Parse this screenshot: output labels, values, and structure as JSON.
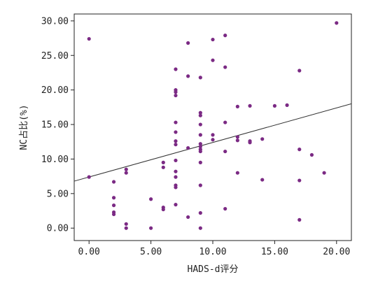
{
  "chart_data": {
    "type": "scatter",
    "xlabel": "HADS-d评分",
    "ylabel": "NC占比(%)",
    "xlim": [
      -1.2,
      21.2
    ],
    "ylim": [
      -1.8,
      31.0
    ],
    "x_ticks": [
      "0.00",
      "5.00",
      "10.00",
      "15.00",
      "20.00"
    ],
    "x_tick_values": [
      0,
      5,
      10,
      15,
      20
    ],
    "y_ticks": [
      "0.00",
      "5.00",
      "10.00",
      "15.00",
      "20.00",
      "25.00",
      "30.00"
    ],
    "y_tick_values": [
      0,
      5,
      10,
      15,
      20,
      25,
      30
    ],
    "grid": false,
    "point_color": "#7b2a84",
    "line_color": "#333333",
    "fit_line": {
      "x": [
        -1.2,
        21.2
      ],
      "y": [
        6.8,
        18.0
      ]
    },
    "points": [
      [
        0,
        27.4
      ],
      [
        0,
        7.4
      ],
      [
        2,
        6.7
      ],
      [
        2,
        4.4
      ],
      [
        2,
        3.3
      ],
      [
        2,
        2.3
      ],
      [
        2,
        2.0
      ],
      [
        3,
        8.5
      ],
      [
        3,
        8.0
      ],
      [
        3,
        0.6
      ],
      [
        3,
        0.0
      ],
      [
        5,
        4.2
      ],
      [
        5,
        0.0
      ],
      [
        6,
        9.5
      ],
      [
        6,
        8.8
      ],
      [
        6,
        3.0
      ],
      [
        6,
        2.7
      ],
      [
        7,
        23.0
      ],
      [
        7,
        20.0
      ],
      [
        7,
        19.7
      ],
      [
        7,
        19.2
      ],
      [
        7,
        15.3
      ],
      [
        7,
        13.9
      ],
      [
        7,
        12.6
      ],
      [
        7,
        12.1
      ],
      [
        7,
        9.8
      ],
      [
        7,
        8.2
      ],
      [
        7,
        7.4
      ],
      [
        7,
        6.2
      ],
      [
        7,
        5.9
      ],
      [
        7,
        3.4
      ],
      [
        8,
        26.8
      ],
      [
        8,
        22.0
      ],
      [
        8,
        11.6
      ],
      [
        8,
        1.6
      ],
      [
        9,
        21.8
      ],
      [
        9,
        16.7
      ],
      [
        9,
        16.3
      ],
      [
        9,
        15.0
      ],
      [
        9,
        13.5
      ],
      [
        9,
        12.2
      ],
      [
        9,
        11.8
      ],
      [
        9,
        11.4
      ],
      [
        9,
        11.1
      ],
      [
        9,
        9.5
      ],
      [
        9,
        6.2
      ],
      [
        9,
        2.2
      ],
      [
        9,
        0.0
      ],
      [
        10,
        27.3
      ],
      [
        10,
        24.3
      ],
      [
        10,
        13.5
      ],
      [
        10,
        12.8
      ],
      [
        11,
        27.9
      ],
      [
        11,
        23.3
      ],
      [
        11,
        15.3
      ],
      [
        11,
        11.1
      ],
      [
        11,
        2.8
      ],
      [
        12,
        17.6
      ],
      [
        12,
        13.2
      ],
      [
        12,
        12.7
      ],
      [
        12,
        8.0
      ],
      [
        13,
        17.7
      ],
      [
        13,
        12.6
      ],
      [
        13,
        12.4
      ],
      [
        14,
        12.9
      ],
      [
        14,
        7.0
      ],
      [
        15,
        17.7
      ],
      [
        16,
        17.8
      ],
      [
        17,
        22.8
      ],
      [
        17,
        11.4
      ],
      [
        17,
        6.9
      ],
      [
        17,
        1.2
      ],
      [
        18,
        10.6
      ],
      [
        19,
        8.0
      ],
      [
        20,
        29.7
      ]
    ]
  }
}
